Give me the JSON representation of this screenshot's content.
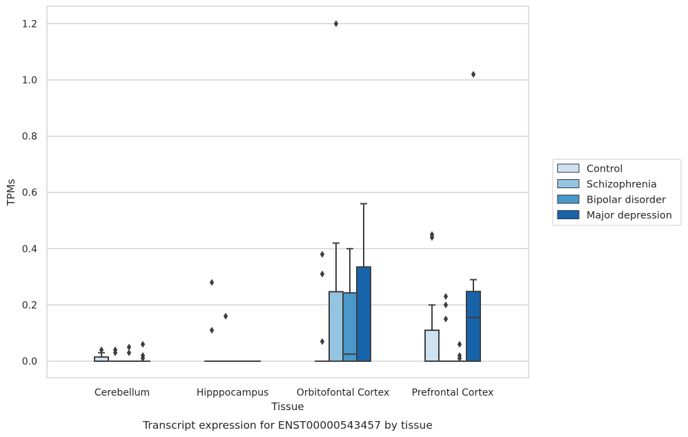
{
  "chart_data": {
    "type": "boxplot",
    "title": "",
    "caption": "Transcript expression for ENST00000543457 by tissue",
    "xlabel": "Tissue",
    "ylabel": "TPMs",
    "ylim": [
      -0.06,
      1.26
    ],
    "yticks": [
      "0.0",
      "0.2",
      "0.4",
      "0.6",
      "0.8",
      "1.0",
      "1.2"
    ],
    "ytick_values": [
      0.0,
      0.2,
      0.4,
      0.6,
      0.8,
      1.0,
      1.2
    ],
    "grid": "horizontal",
    "legend_position": "right",
    "categories": [
      "Cerebellum",
      "Hipppocampus",
      "Orbitofontal Cortex",
      "Prefrontal Cortex"
    ],
    "series": [
      {
        "name": "Control",
        "color": "#d0e1f2",
        "boxes": [
          {
            "q1": 0.0,
            "median": 0.0,
            "q3": 0.015,
            "whislo": 0.0,
            "whishi": 0.03,
            "fliers": [
              0.04
            ]
          },
          {
            "q1": 0.0,
            "median": 0.0,
            "q3": 0.0,
            "whislo": 0.0,
            "whishi": 0.0,
            "fliers": [
              0.28,
              0.11
            ]
          },
          {
            "q1": 0.0,
            "median": 0.0,
            "q3": 0.0,
            "whislo": 0.0,
            "whishi": 0.0,
            "fliers": [
              0.38,
              0.31,
              0.07
            ]
          },
          {
            "q1": 0.0,
            "median": 0.0,
            "q3": 0.11,
            "whislo": 0.0,
            "whishi": 0.2,
            "fliers": [
              0.45,
              0.44
            ]
          }
        ]
      },
      {
        "name": "Schizophrenia",
        "color": "#94c4df",
        "boxes": [
          {
            "q1": 0.0,
            "median": 0.0,
            "q3": 0.0,
            "whislo": 0.0,
            "whishi": 0.0,
            "fliers": [
              0.04,
              0.03
            ]
          },
          {
            "q1": 0.0,
            "median": 0.0,
            "q3": 0.0,
            "whislo": 0.0,
            "whishi": 0.0,
            "fliers": [
              0.16
            ]
          },
          {
            "q1": 0.0,
            "median": 0.0,
            "q3": 0.247,
            "whislo": 0.0,
            "whishi": 0.42,
            "fliers": [
              1.2
            ]
          },
          {
            "q1": 0.0,
            "median": 0.0,
            "q3": 0.0,
            "whislo": 0.0,
            "whishi": 0.0,
            "fliers": [
              0.23,
              0.2,
              0.15
            ]
          }
        ]
      },
      {
        "name": "Bipolar disorder",
        "color": "#4a98c9",
        "boxes": [
          {
            "q1": 0.0,
            "median": 0.0,
            "q3": 0.0,
            "whislo": 0.0,
            "whishi": 0.0,
            "fliers": [
              0.05,
              0.03
            ]
          },
          {
            "q1": 0.0,
            "median": 0.0,
            "q3": 0.0,
            "whislo": 0.0,
            "whishi": 0.0,
            "fliers": []
          },
          {
            "q1": 0.0,
            "median": 0.025,
            "q3": 0.243,
            "whislo": 0.0,
            "whishi": 0.4,
            "fliers": []
          },
          {
            "q1": 0.0,
            "median": 0.0,
            "q3": 0.0,
            "whislo": 0.0,
            "whishi": 0.0,
            "fliers": [
              0.06,
              0.02,
              0.01
            ]
          }
        ]
      },
      {
        "name": "Major depression",
        "color": "#1764ab",
        "boxes": [
          {
            "q1": 0.0,
            "median": 0.0,
            "q3": 0.0,
            "whislo": 0.0,
            "whishi": 0.0,
            "fliers": [
              0.06,
              0.02,
              0.01
            ]
          },
          {
            "q1": 0.0,
            "median": 0.0,
            "q3": 0.0,
            "whislo": 0.0,
            "whishi": 0.0,
            "fliers": []
          },
          {
            "q1": 0.0,
            "median": 0.0,
            "q3": 0.335,
            "whislo": 0.0,
            "whishi": 0.56,
            "fliers": []
          },
          {
            "q1": 0.0,
            "median": 0.155,
            "q3": 0.248,
            "whislo": 0.0,
            "whishi": 0.29,
            "fliers": [
              1.02
            ]
          }
        ]
      }
    ]
  }
}
